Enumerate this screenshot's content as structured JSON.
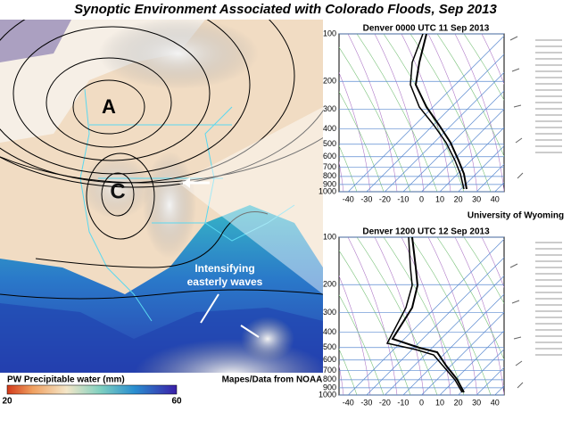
{
  "title": "Synoptic Environment Associated with Colorado Floods, Sep 2013",
  "map": {
    "high_label": "A",
    "low_label": "C",
    "annotation": [
      "Intensifying",
      "easterly waves"
    ],
    "colorbar": {
      "label": "PW Precipitable water (mm)",
      "min": 20,
      "max": 60
    },
    "credit": "Mapes/Data from NOAA"
  },
  "soundings": [
    {
      "title": "Denver 0000 UTC 11 Sep 2013",
      "ylim": [
        1000,
        100
      ],
      "yticks": [
        100,
        200,
        300,
        400,
        500,
        600,
        700,
        800,
        900,
        1000
      ],
      "xlim": [
        -45,
        45
      ],
      "xticks": [
        -40,
        -30,
        -20,
        -10,
        0,
        10,
        20,
        30,
        40
      ]
    },
    {
      "title": "Denver 1200 UTC 12 Sep 2013",
      "ylim": [
        1000,
        100
      ],
      "yticks": [
        100,
        200,
        300,
        400,
        500,
        600,
        700,
        800,
        900,
        1000
      ],
      "xlim": [
        -45,
        45
      ],
      "xticks": [
        -40,
        -30,
        -20,
        -10,
        0,
        10,
        20,
        30,
        40
      ]
    }
  ],
  "source": "University of Wyoming"
}
